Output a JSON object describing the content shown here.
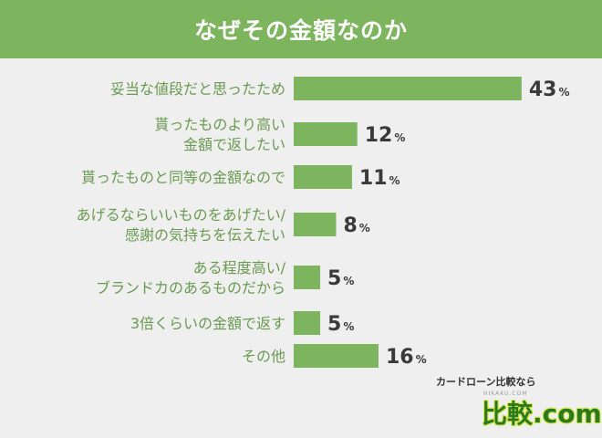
{
  "header": {
    "title": "なぜその金額なのか"
  },
  "chart_data": {
    "type": "bar",
    "orientation": "horizontal",
    "title": "なぜその金額なのか",
    "categories": [
      [
        "妥当な値段だと思ったため"
      ],
      [
        "貰ったものより高い",
        "金額で返したい"
      ],
      [
        "貰ったものと同等の金額なので"
      ],
      [
        "あげるならいいものをあげたい/",
        "感謝の気持ちを伝えたい"
      ],
      [
        "ある程度高い/",
        "ブランドカのあるものだから"
      ],
      [
        "3倍くらいの金額で返す"
      ],
      [
        "その他"
      ]
    ],
    "values": [
      43,
      12,
      11,
      8,
      5,
      5,
      16
    ],
    "value_labels": [
      "43",
      "12",
      "11",
      "8",
      "5",
      "5",
      "16"
    ],
    "unit": "%",
    "bar_color": "#7cb55e",
    "label_color": "#6a9a50"
  },
  "logo": {
    "top_text": "カードローン比較なら",
    "sub_text": "HIKAKU.COM",
    "main_text": "比較.com"
  }
}
